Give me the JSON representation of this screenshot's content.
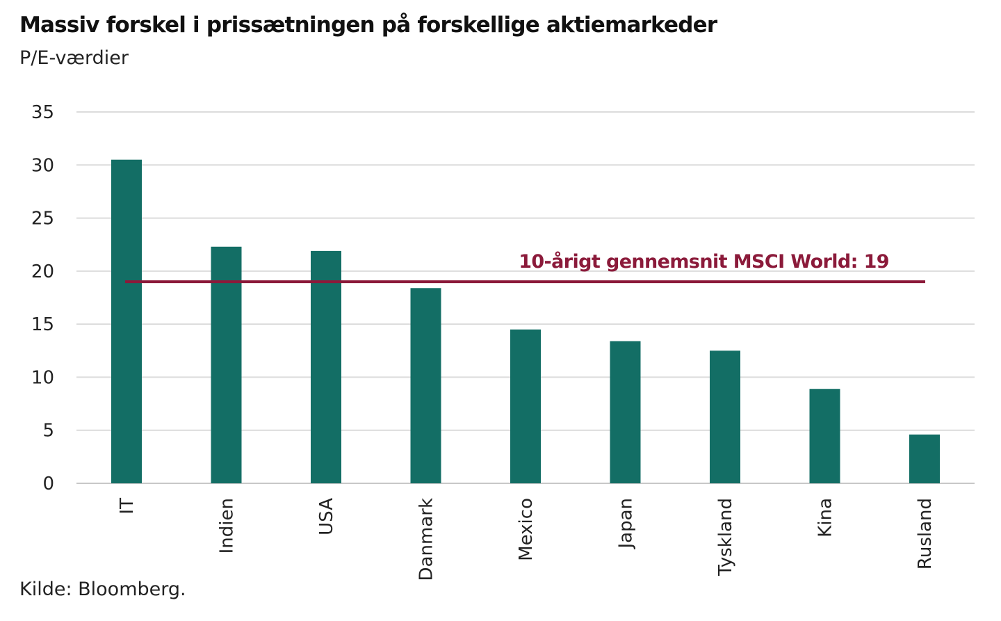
{
  "chart_data": {
    "type": "bar",
    "title": "Massiv forskel i prissætningen på forskellige aktiemarkeder",
    "subtitle": "P/E-værdier",
    "source": "Kilde: Bloomberg.",
    "categories": [
      "IT",
      "Indien",
      "USA",
      "Danmark",
      "Mexico",
      "Japan",
      "Tyskland",
      "Kina",
      "Rusland"
    ],
    "values": [
      30.5,
      22.3,
      21.9,
      18.4,
      14.5,
      13.4,
      12.5,
      8.9,
      4.6
    ],
    "ylim": [
      0,
      35
    ],
    "yticks": [
      0,
      5,
      10,
      15,
      20,
      25,
      30,
      35
    ],
    "grid": true,
    "reference_line": {
      "value": 19,
      "label": "10-årigt gennemsnit MSCI World: 19",
      "color": "#8b1a3a"
    },
    "bar_color": "#136e65"
  }
}
